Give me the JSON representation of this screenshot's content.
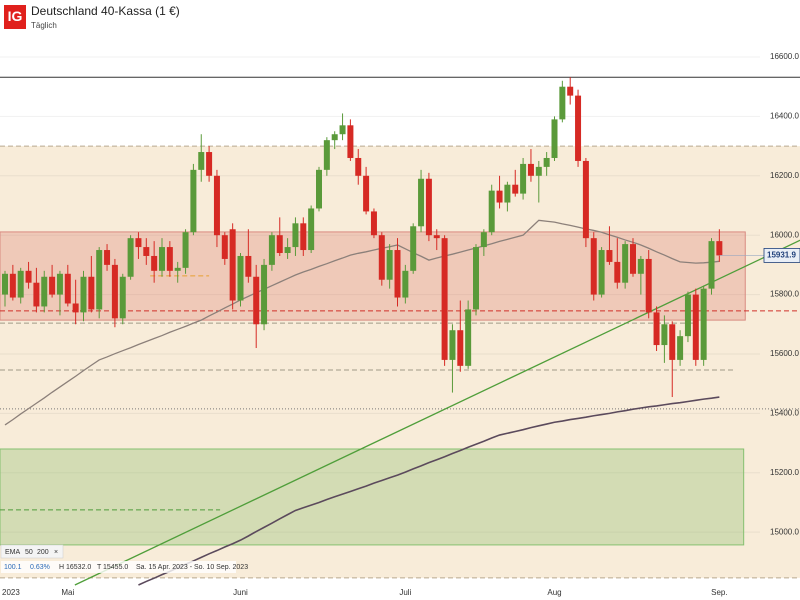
{
  "chart_data": {
    "type": "candlestick",
    "logo": "IG",
    "title": "Deutschland 40-Kassa (1 €)",
    "subtitle": "Täglich",
    "categories": [
      "2023",
      null,
      null,
      null,
      null,
      null,
      null,
      null,
      "Mai",
      null,
      null,
      null,
      null,
      null,
      null,
      null,
      null,
      null,
      null,
      null,
      null,
      null,
      null,
      null,
      null,
      null,
      null,
      null,
      null,
      null,
      "Juni",
      null,
      null,
      null,
      null,
      null,
      null,
      null,
      null,
      null,
      null,
      null,
      null,
      null,
      null,
      null,
      null,
      null,
      null,
      null,
      null,
      "Juli",
      null,
      null,
      null,
      null,
      null,
      null,
      null,
      null,
      null,
      null,
      null,
      null,
      null,
      null,
      null,
      null,
      null,
      null,
      "Aug",
      null,
      null,
      null,
      null,
      null,
      null,
      null,
      null,
      null,
      null,
      null,
      null,
      null,
      null,
      null,
      null,
      null,
      null,
      null,
      null,
      "Sep."
    ],
    "open": [
      15800,
      15870,
      15790,
      15880,
      15840,
      15760,
      15860,
      15800,
      15870,
      15770,
      15740,
      15860,
      15750,
      15950,
      15900,
      15720,
      15860,
      15990,
      15960,
      15930,
      15880,
      15960,
      15880,
      15890,
      16010,
      16220,
      16280,
      16200,
      16000,
      16020,
      15780,
      15930,
      15860,
      15700,
      15900,
      16000,
      15940,
      15960,
      16040,
      15950,
      16090,
      16220,
      16320,
      16340,
      16370,
      16260,
      16200,
      16080,
      16000,
      15850,
      15950,
      15790,
      15880,
      16030,
      16190,
      16000,
      15990,
      15580,
      15680,
      15560,
      15750,
      15960,
      16010,
      16150,
      16110,
      16170,
      16140,
      16240,
      16200,
      16230,
      16260,
      16390,
      16500,
      16470,
      16250,
      15990,
      15800,
      15950,
      15910,
      15840,
      15970,
      15870,
      15920,
      15740,
      15630,
      15700,
      15580,
      15660,
      15800,
      15580,
      15820,
      15980
    ],
    "high": [
      15880,
      15900,
      15890,
      15910,
      15890,
      15880,
      15900,
      15880,
      15900,
      15850,
      15880,
      15930,
      15960,
      15970,
      15920,
      15870,
      16000,
      16010,
      15990,
      15980,
      15990,
      15980,
      15910,
      16020,
      16240,
      16340,
      16300,
      16220,
      16010,
      16040,
      15940,
      16020,
      15900,
      15920,
      16010,
      16060,
      15990,
      16060,
      16060,
      16100,
      16230,
      16330,
      16350,
      16410,
      16390,
      16290,
      16230,
      16090,
      16010,
      15970,
      15990,
      15900,
      16040,
      16220,
      16210,
      16020,
      16000,
      15700,
      15780,
      15780,
      15970,
      16020,
      16170,
      16200,
      16180,
      16220,
      16260,
      16290,
      16250,
      16280,
      16400,
      16520,
      16532,
      16490,
      16260,
      16010,
      15960,
      16030,
      15990,
      15980,
      15990,
      15930,
      15950,
      15760,
      15730,
      15710,
      15680,
      15810,
      15820,
      15830,
      15990,
      16020
    ],
    "low": [
      15760,
      15780,
      15770,
      15820,
      15740,
      15740,
      15790,
      15730,
      15760,
      15700,
      15710,
      15740,
      15720,
      15880,
      15690,
      15700,
      15850,
      15920,
      15900,
      15840,
      15860,
      15860,
      15840,
      15870,
      16000,
      16180,
      16180,
      15960,
      15900,
      15750,
      15760,
      15840,
      15620,
      15680,
      15880,
      15930,
      15920,
      15930,
      15930,
      15940,
      16080,
      16200,
      16290,
      16320,
      16250,
      16170,
      16070,
      15990,
      15830,
      15820,
      15760,
      15770,
      15870,
      16010,
      15980,
      15950,
      15560,
      15470,
      15540,
      15550,
      15730,
      15930,
      16000,
      16090,
      16080,
      16130,
      16120,
      16180,
      16110,
      16200,
      16250,
      16380,
      16440,
      16230,
      15960,
      15780,
      15790,
      15900,
      15820,
      15820,
      15860,
      15800,
      15720,
      15610,
      15570,
      15455,
      15560,
      15640,
      15560,
      15560,
      15800,
      15910
    ],
    "close": [
      15870,
      15790,
      15880,
      15840,
      15760,
      15860,
      15800,
      15870,
      15770,
      15740,
      15860,
      15750,
      15950,
      15900,
      15720,
      15860,
      15990,
      15960,
      15930,
      15880,
      15960,
      15880,
      15890,
      16010,
      16220,
      16280,
      16200,
      16000,
      15920,
      15780,
      15930,
      15860,
      15700,
      15900,
      16000,
      15940,
      15960,
      16040,
      15950,
      16090,
      16220,
      16320,
      16340,
      16370,
      16260,
      16200,
      16080,
      16000,
      15850,
      15950,
      15790,
      15880,
      16030,
      16190,
      16000,
      15990,
      15580,
      15680,
      15560,
      15750,
      15960,
      16010,
      16150,
      16110,
      16170,
      16140,
      16240,
      16200,
      16230,
      16260,
      16390,
      16500,
      16470,
      16250,
      15990,
      15800,
      15950,
      15910,
      15840,
      15970,
      15870,
      15920,
      15740,
      15630,
      15700,
      15580,
      15660,
      15800,
      15580,
      15820,
      15980,
      15931.9
    ],
    "up_color": "#5a9a3a",
    "down_color": "#d62a24",
    "ylim": [
      14822,
      16792
    ],
    "yticks": [
      {
        "value": 15000,
        "label": "15000.0"
      },
      {
        "value": 15200,
        "label": "15200.0"
      },
      {
        "value": 15400,
        "label": "15400.0"
      },
      {
        "value": 15600,
        "label": "15600.0"
      },
      {
        "value": 15800,
        "label": "15800.0"
      },
      {
        "value": 16000,
        "label": "16000.0"
      },
      {
        "value": 16200,
        "label": "16200.0"
      },
      {
        "value": 16400,
        "label": "16400.0"
      },
      {
        "value": 16600,
        "label": "16600.0"
      }
    ],
    "grid": true,
    "ema": {
      "label": "EMA",
      "series": [
        {
          "period": 50,
          "color": "#8c807a",
          "values": [
            15361,
            15379,
            15398,
            15416,
            15434,
            15452,
            15471,
            15489,
            15507,
            15525,
            15544,
            15562,
            15580,
            15590,
            15601,
            15611,
            15621,
            15632,
            15642,
            15652,
            15662,
            15673,
            15683,
            15693,
            15704,
            15714,
            15728,
            15741,
            15755,
            15768,
            15782,
            15794,
            15806,
            15818,
            15830,
            15842,
            15854,
            15866,
            15876,
            15885,
            15895,
            15904,
            15914,
            15923,
            15933,
            15939,
            15944,
            15950,
            15956,
            15961,
            15967,
            15954,
            15941,
            15929,
            15916,
            15923,
            15930,
            15936,
            15943,
            15950,
            15957,
            15964,
            15971,
            15979,
            15986,
            15993,
            16000,
            16025,
            16050,
            16047,
            16044,
            16038,
            16033,
            16027,
            16021,
            16016,
            16010,
            16001,
            15993,
            15984,
            15976,
            15967,
            15956,
            15944,
            15933,
            15921,
            15910,
            15908,
            15906,
            15907,
            15909,
            15912
          ]
        },
        {
          "period": 200,
          "color": "#5b4a5c",
          "values": [
            null,
            null,
            null,
            null,
            null,
            null,
            null,
            null,
            null,
            null,
            null,
            null,
            null,
            null,
            null,
            null,
            null,
            14822,
            14834,
            14845,
            14857,
            14868,
            14880,
            14892,
            14903,
            14915,
            14927,
            14938,
            14950,
            14961,
            14973,
            14987,
            15002,
            15016,
            15030,
            15045,
            15059,
            15073,
            15082,
            15091,
            15100,
            15110,
            15119,
            15128,
            15137,
            15146,
            15155,
            15165,
            15174,
            15183,
            15192,
            15202,
            15213,
            15223,
            15234,
            15244,
            15254,
            15265,
            15275,
            15286,
            15296,
            15306,
            15317,
            15327,
            15333,
            15339,
            15345,
            15352,
            15358,
            15364,
            15370,
            15374,
            15379,
            15383,
            15387,
            15392,
            15396,
            15400,
            15405,
            15409,
            15414,
            15418,
            15422,
            15425,
            15429,
            15433,
            15436,
            15440,
            15444,
            15448,
            15451,
            15455
          ]
        }
      ]
    },
    "zones": [
      {
        "low": 14846,
        "high": 16300,
        "start": -1,
        "end": 101.3,
        "color": "#f8ecd9",
        "border": "none"
      },
      {
        "low": 15714,
        "high": 16011,
        "start": -1,
        "end": 94.3,
        "color": "rgba(214,110,100,0.28)",
        "border": "#d88a80"
      },
      {
        "low": 14957,
        "high": 15280,
        "start": -1,
        "end": 94.1,
        "color": "rgba(150,195,120,0.38)",
        "border": "#86c070"
      }
    ],
    "levels": [
      {
        "value": 16532,
        "start": -1,
        "end": 101.3,
        "color": "#333333",
        "dash": "none"
      },
      {
        "value": 16300,
        "start": -1,
        "end": 101.3,
        "color": "#b9a890",
        "dash": "5 3"
      },
      {
        "value": 15745,
        "start": -1,
        "end": 101.3,
        "color": "#d0302a",
        "dash": "5 3"
      },
      {
        "value": 15704,
        "start": -1,
        "end": 88,
        "color": "#a09a88",
        "dash": "5 3"
      },
      {
        "value": 15546,
        "start": -1,
        "end": 93,
        "color": "#a09a88",
        "dash": "5 3"
      },
      {
        "value": 15415,
        "start": -1,
        "end": 101.3,
        "color": "#777777",
        "dash": "1 2"
      },
      {
        "value": 15075,
        "start": -1,
        "end": 27.4,
        "color": "#4f9a3a",
        "dash": "5 3"
      },
      {
        "value": 15863,
        "start": 18.5,
        "end": 26,
        "color": "#e8a030",
        "dash": "5 3"
      },
      {
        "value": 14846,
        "start": -1,
        "end": 101.3,
        "color": "#b9a890",
        "dash": "5 3"
      }
    ],
    "trendline": {
      "start": [
        8.9,
        14822
      ],
      "end": [
        101.3,
        15983
      ],
      "color": "#4f9e3a"
    },
    "info": {
      "change": 100.1,
      "change_pct": {
        "value": 0.63,
        "label": "0.63%"
      },
      "high": {
        "prefix": "H",
        "value": 16532,
        "label": "16532.0"
      },
      "low": {
        "prefix": "T",
        "value": 15455,
        "label": "15455.0"
      },
      "range": "Sa. 15 Apr. 2023 - So. 10 Sep. 2023"
    }
  }
}
